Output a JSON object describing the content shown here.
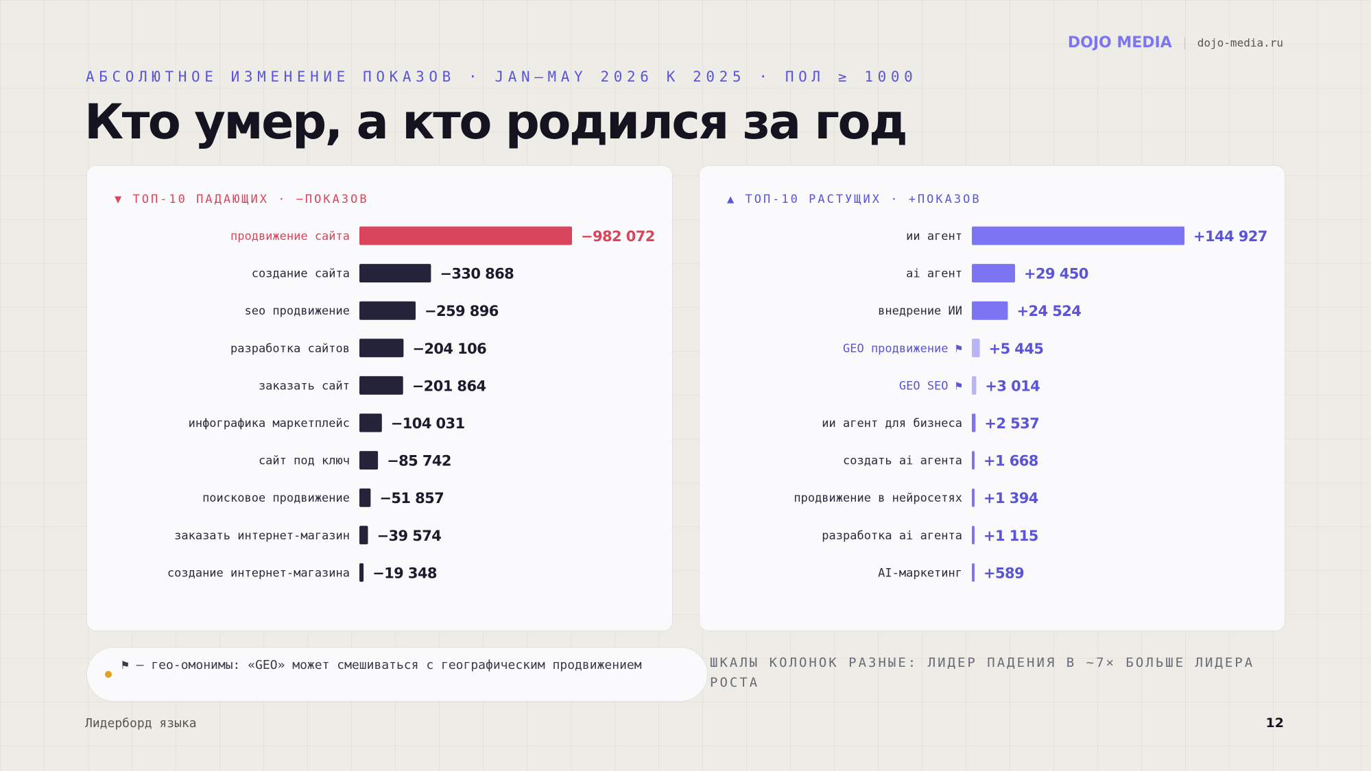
{
  "brand": {
    "name": "DOJO MEDIA",
    "url": "dojo-media.ru"
  },
  "kicker": "АБСОЛЮТНОЕ ИЗМЕНЕНИЕ ПОКАЗОВ · JAN–MAY 2026 К 2025 · ПОЛ ≥ 1000",
  "title": "Кто умер, а кто родился за год",
  "colors": {
    "fall_highlight": "#d9465b",
    "fall_bar": "#24233a",
    "rise_bar": "#7c74f3",
    "rise_light": "#b9b4f7",
    "rise_value": "#5a55d6",
    "geo_flag_dot": "#e0a020"
  },
  "chart_data": [
    {
      "type": "bar",
      "orientation": "horizontal",
      "header": "▼ ТОП-10 ПАДАЮЩИХ · −ПОКАЗОВ",
      "categories": [
        "продвижение сайта",
        "создание сайта",
        "seo продвижение",
        "разработка сайтов",
        "заказать сайт",
        "инфографика маркетплейс",
        "сайт под ключ",
        "поисковое продвижение",
        "заказать интернет-магазин",
        "создание интернет-магазина"
      ],
      "values": [
        -982072,
        -330868,
        -259896,
        -204106,
        -201864,
        -104031,
        -85742,
        -51857,
        -39574,
        -19348
      ],
      "value_labels": [
        "−982 072",
        "−330 868",
        "−259 896",
        "−204 106",
        "−201 864",
        "−104 031",
        "−85 742",
        "−51 857",
        "−39 574",
        "−19 348"
      ],
      "highlight_index": 0
    },
    {
      "type": "bar",
      "orientation": "horizontal",
      "header": "▲ ТОП-10 РАСТУЩИХ · +ПОКАЗОВ",
      "categories": [
        "ии агент",
        "ai агент",
        "внедрение ИИ",
        "GEO продвижение ⚑",
        "GEO SEO ⚑",
        "ии агент для бизнеса",
        "создать ai агента",
        "продвижение в нейросетях",
        "разработка ai агента",
        "AI-маркетинг"
      ],
      "values": [
        144927,
        29450,
        24524,
        5445,
        3014,
        2537,
        1668,
        1394,
        1115,
        589
      ],
      "value_labels": [
        "+144 927",
        "+29 450",
        "+24 524",
        "+5 445",
        "+3 014",
        "+2 537",
        "+1 668",
        "+1 394",
        "+1 115",
        "+589"
      ],
      "geo_flag_indices": [
        3,
        4
      ]
    }
  ],
  "note": "⚑ — гео-омонимы: «GEO» может смешиваться с географическим продвижением",
  "scale_note": "ШКАЛЫ КОЛОНОК РАЗНЫЕ: ЛИДЕР ПАДЕНИЯ В ~7× БОЛЬШЕ ЛИДЕРА РОСТА",
  "footer": {
    "section": "Лидерборд языка",
    "page": "12"
  }
}
